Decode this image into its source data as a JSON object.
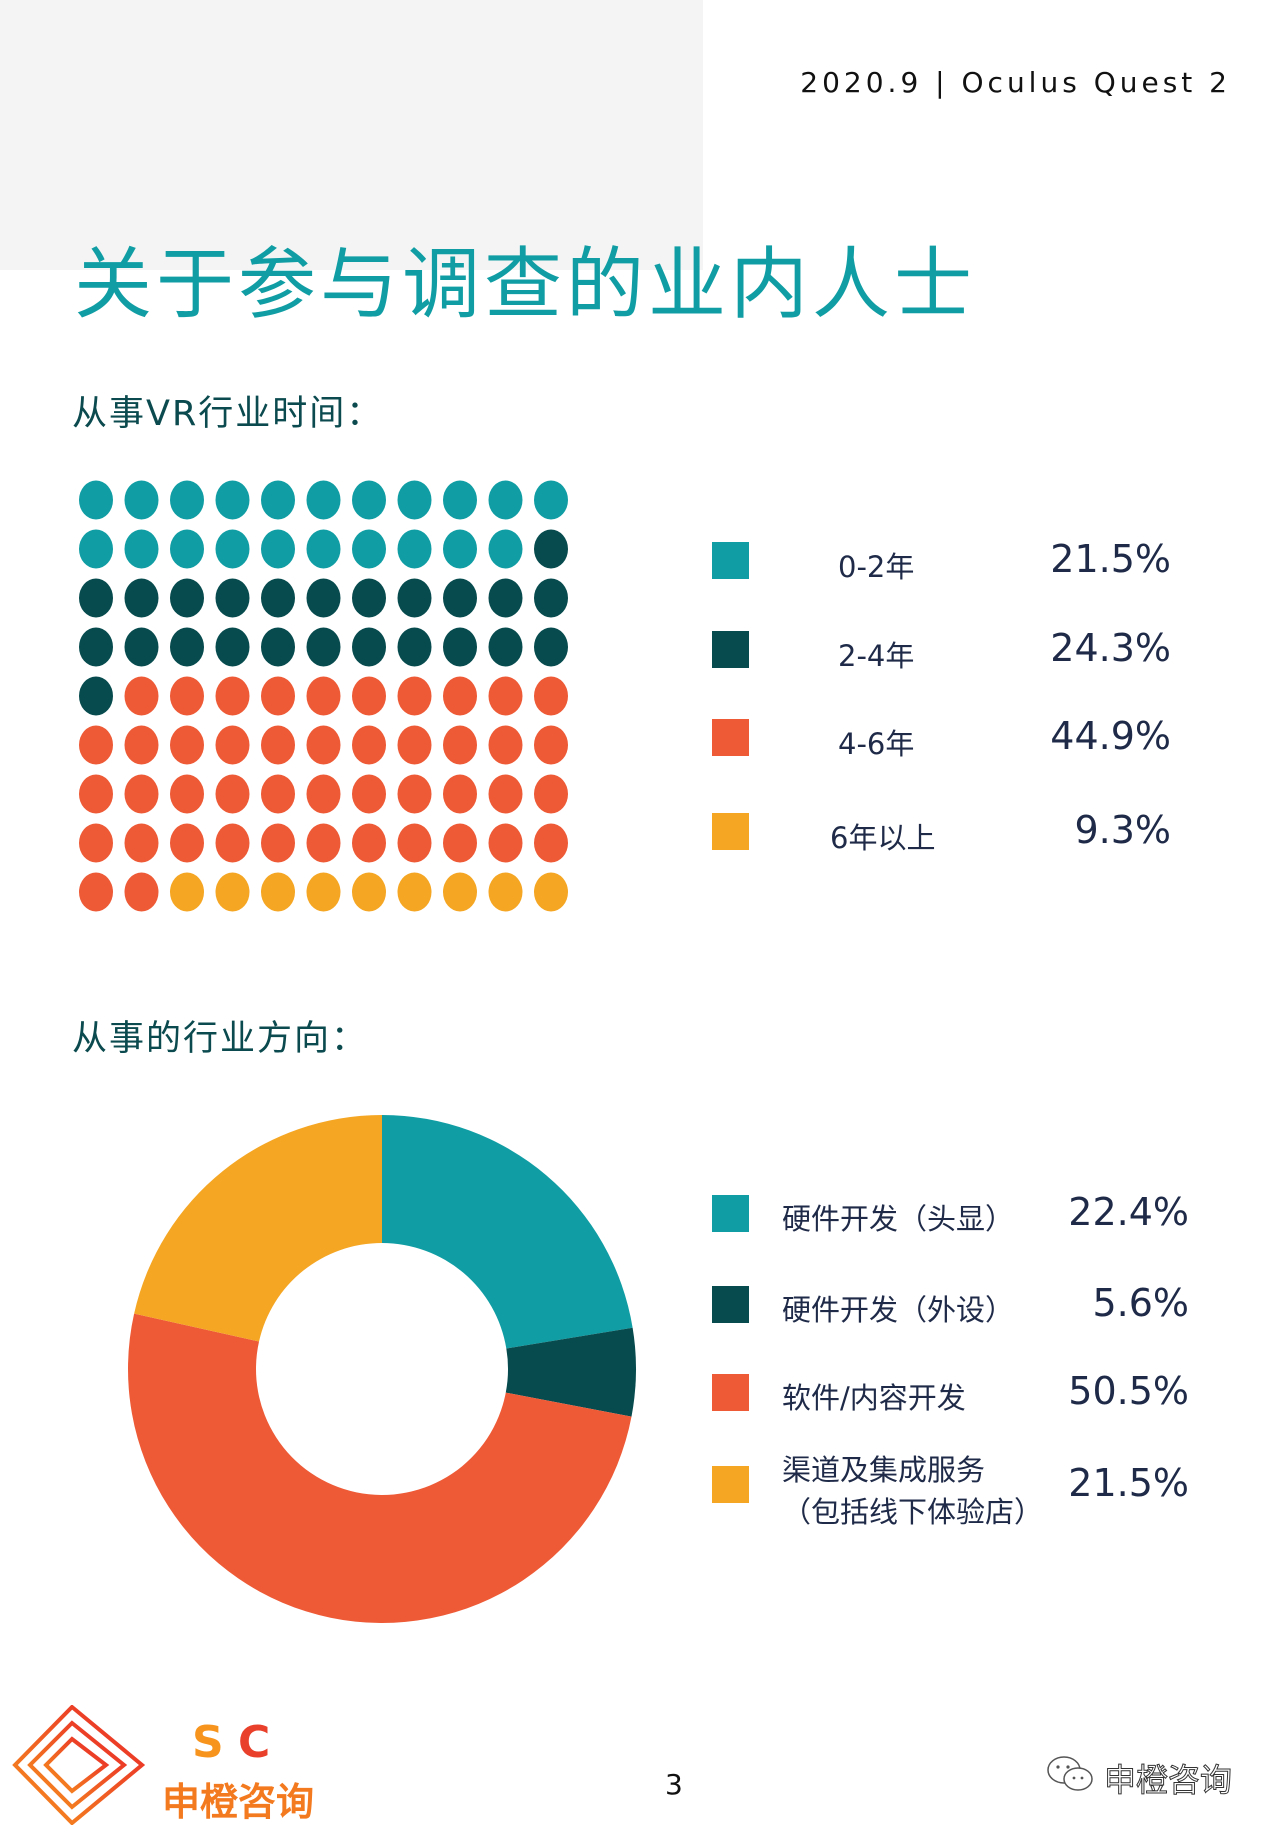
{
  "header": {
    "text": "2020.9 | Oculus Quest 2"
  },
  "title": "关于参与调查的业内人士",
  "page_number": "3",
  "brand": {
    "logo_text": "SC 申橙咨询",
    "wechat_name": "申橙咨询"
  },
  "chart_data": [
    {
      "type": "waffle",
      "title": "从事VR行业时间：",
      "grid": {
        "columns": 11,
        "rows": 9
      },
      "categories": [
        "0-2年",
        "2-4年",
        "4-6年",
        "6年以上"
      ],
      "values": [
        21.5,
        24.3,
        44.9,
        9.3
      ],
      "labels": [
        "21.5%",
        "24.3%",
        "44.9%",
        "9.3%"
      ],
      "dot_counts": [
        21,
        24,
        45,
        9
      ],
      "colors": [
        "#109ea4",
        "#074b4e",
        "#ee5a36",
        "#f5a623"
      ]
    },
    {
      "type": "donut",
      "title": "从事的行业方向：",
      "categories": [
        "硬件开发（头显）",
        "硬件开发（外设）",
        "软件/内容开发",
        "渠道及集成服务（包括线下体验店）"
      ],
      "label_lines": [
        [
          "硬件开发（头显）"
        ],
        [
          "硬件开发（外设）"
        ],
        [
          "软件/内容开发"
        ],
        [
          "渠道及集成服务",
          "（包括线下体验店）"
        ]
      ],
      "values": [
        22.4,
        5.6,
        50.5,
        21.5
      ],
      "labels": [
        "22.4%",
        "5.6%",
        "50.5%",
        "21.5%"
      ],
      "colors": [
        "#109ea4",
        "#074b4e",
        "#ee5a36",
        "#f5a623"
      ]
    }
  ]
}
